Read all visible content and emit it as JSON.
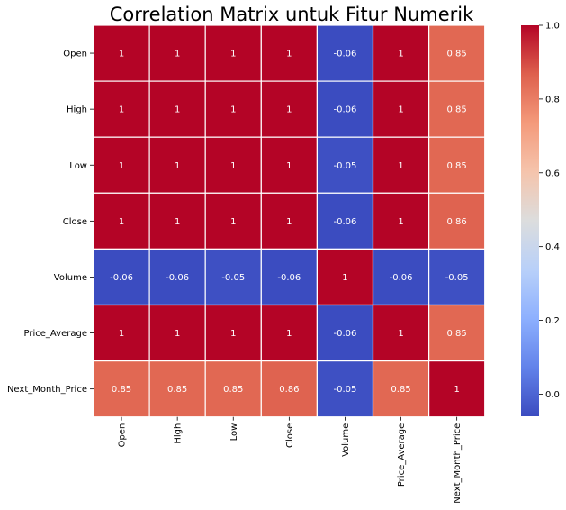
{
  "chart_data": {
    "type": "heatmap",
    "title": "Correlation Matrix untuk Fitur Numerik",
    "x_categories": [
      "Open",
      "High",
      "Low",
      "Close",
      "Volume",
      "Price_Average",
      "Next_Month_Price"
    ],
    "y_categories": [
      "Open",
      "High",
      "Low",
      "Close",
      "Volume",
      "Price_Average",
      "Next_Month_Price"
    ],
    "values": [
      [
        1,
        1,
        1,
        1,
        -0.06,
        1,
        0.85
      ],
      [
        1,
        1,
        1,
        1,
        -0.06,
        1,
        0.85
      ],
      [
        1,
        1,
        1,
        1,
        -0.05,
        1,
        0.85
      ],
      [
        1,
        1,
        1,
        1,
        -0.06,
        1,
        0.86
      ],
      [
        -0.06,
        -0.06,
        -0.05,
        -0.06,
        1,
        -0.06,
        -0.05
      ],
      [
        1,
        1,
        1,
        1,
        -0.06,
        1,
        0.85
      ],
      [
        0.85,
        0.85,
        0.85,
        0.86,
        -0.05,
        0.85,
        1
      ]
    ],
    "value_labels": [
      [
        "1",
        "1",
        "1",
        "1",
        "-0.06",
        "1",
        "0.85"
      ],
      [
        "1",
        "1",
        "1",
        "1",
        "-0.06",
        "1",
        "0.85"
      ],
      [
        "1",
        "1",
        "1",
        "1",
        "-0.05",
        "1",
        "0.85"
      ],
      [
        "1",
        "1",
        "1",
        "1",
        "-0.06",
        "1",
        "0.86"
      ],
      [
        "-0.06",
        "-0.06",
        "-0.05",
        "-0.06",
        "1",
        "-0.06",
        "-0.05"
      ],
      [
        "1",
        "1",
        "1",
        "1",
        "-0.06",
        "1",
        "0.85"
      ],
      [
        "0.85",
        "0.85",
        "0.85",
        "0.86",
        "-0.05",
        "0.85",
        "1"
      ]
    ],
    "colormap": "coolwarm",
    "colorbar": {
      "range": [
        -0.06,
        1.0
      ],
      "ticks": [
        0.0,
        0.2,
        0.4,
        0.6,
        0.8,
        1.0
      ],
      "tick_labels": [
        "0.0",
        "0.2",
        "0.4",
        "0.6",
        "0.8",
        "1.0"
      ]
    },
    "colormap_stops": [
      "#3b4cc0",
      "#6282ea",
      "#8db0fe",
      "#b8d0f9",
      "#dcdddd",
      "#f5c4ac",
      "#f49a7b",
      "#de604d",
      "#b40426"
    ],
    "cell_border_color": "#ffffff"
  }
}
